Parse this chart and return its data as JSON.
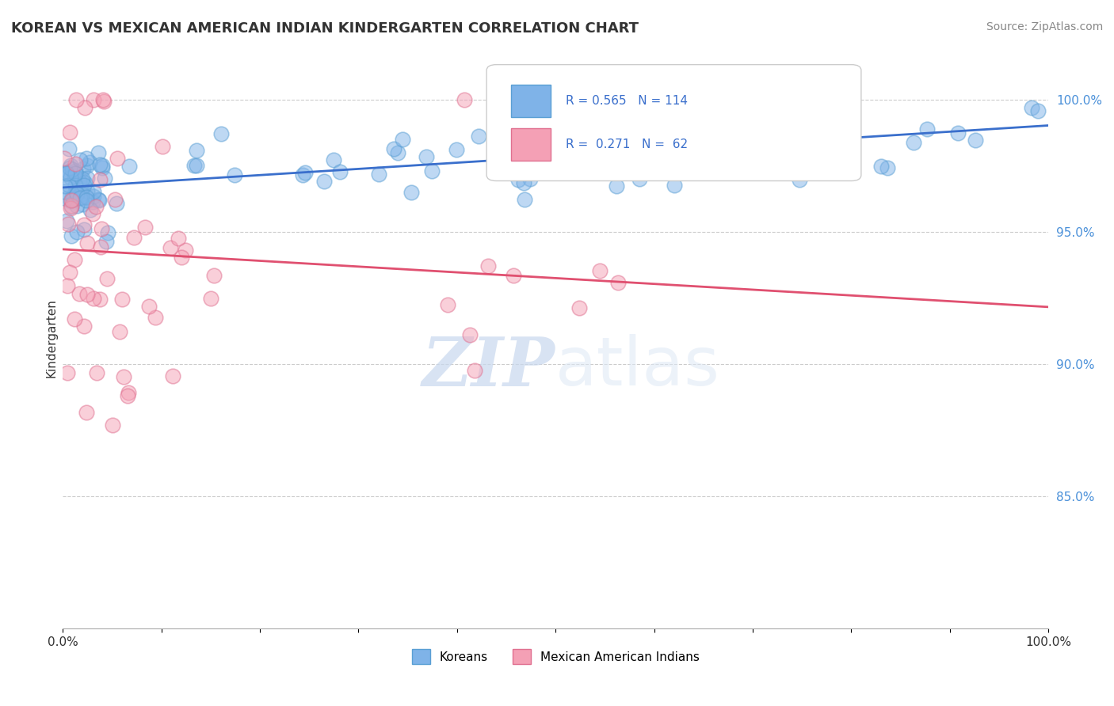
{
  "title": "KOREAN VS MEXICAN AMERICAN INDIAN KINDERGARTEN CORRELATION CHART",
  "source": "Source: ZipAtlas.com",
  "ylabel": "Kindergarten",
  "xlim": [
    0.0,
    1.0
  ],
  "ylim": [
    0.8,
    1.02
  ],
  "yticks": [
    0.85,
    0.9,
    0.95,
    1.0
  ],
  "ytick_labels": [
    "85.0%",
    "90.0%",
    "95.0%",
    "100.0%"
  ],
  "xticks": [
    0.0,
    0.1,
    0.2,
    0.3,
    0.4,
    0.5,
    0.6,
    0.7,
    0.8,
    0.9,
    1.0
  ],
  "xtick_labels": [
    "0.0%",
    "",
    "",
    "",
    "",
    "",
    "",
    "",
    "",
    "",
    "100.0%"
  ],
  "korean_color": "#7fb3e8",
  "mexican_color": "#f4a0b5",
  "korean_edge": "#5a9fd4",
  "mexican_edge": "#e07090",
  "trendline_korean_color": "#3a6fcc",
  "trendline_mexican_color": "#e05070",
  "korean_R": 0.565,
  "korean_N": 114,
  "mexican_R": 0.271,
  "mexican_N": 62,
  "watermark_zip": "ZIP",
  "watermark_atlas": "atlas",
  "background_color": "#ffffff",
  "grid_color": "#cccccc",
  "legend_label_korean": "Koreans",
  "legend_label_mexican": "Mexican American Indians"
}
